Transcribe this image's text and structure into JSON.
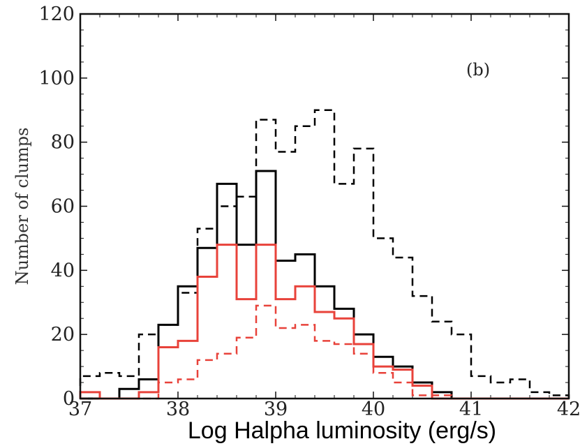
{
  "chart_data": {
    "type": "line",
    "panel_label": "(b)",
    "ylabel": "Number of clumps",
    "xlabel": "Log Halpha luminosity (erg/s)",
    "xlim": [
      37,
      42
    ],
    "ylim": [
      0,
      120
    ],
    "x_ticks": [
      "37",
      "38",
      "39",
      "40",
      "41",
      "42"
    ],
    "y_ticks": [
      "0",
      "20",
      "40",
      "60",
      "80",
      "100",
      "120"
    ],
    "bin_edges": [
      37.0,
      37.2,
      37.4,
      37.6,
      37.8,
      38.0,
      38.2,
      38.4,
      38.6,
      38.8,
      39.0,
      39.2,
      39.4,
      39.6,
      39.8,
      40.0,
      40.2,
      40.4,
      40.6,
      40.8,
      41.0,
      41.2,
      41.4,
      41.6,
      41.8,
      42.0
    ],
    "series": [
      {
        "color": "#000000",
        "dash": "dashed",
        "values": [
          7,
          8,
          7,
          20,
          23,
          33,
          53,
          60,
          63,
          87,
          77,
          85,
          90,
          67,
          78,
          50,
          44,
          32,
          24,
          20,
          7,
          5,
          6,
          2,
          1
        ]
      },
      {
        "color": "#000000",
        "dash": "solid",
        "values": [
          0,
          0,
          3,
          6,
          23,
          35,
          47,
          67,
          48,
          71,
          43,
          45,
          35,
          28,
          20,
          13,
          10,
          5,
          2,
          0,
          0,
          0,
          0,
          0,
          0
        ]
      },
      {
        "color": "#e8423a",
        "dash": "solid",
        "values": [
          2,
          0,
          0,
          2,
          16,
          18,
          38,
          48,
          31,
          48,
          31,
          35,
          27,
          25,
          17,
          10,
          9,
          4,
          0,
          0,
          0,
          0,
          0,
          0,
          0
        ]
      },
      {
        "color": "#e8423a",
        "dash": "dashed",
        "values": [
          0,
          0,
          0,
          0,
          5,
          6,
          12,
          14,
          19,
          29,
          22,
          23,
          18,
          17,
          14,
          8,
          5,
          1,
          1,
          0,
          0,
          0,
          0,
          0,
          0
        ]
      }
    ]
  }
}
